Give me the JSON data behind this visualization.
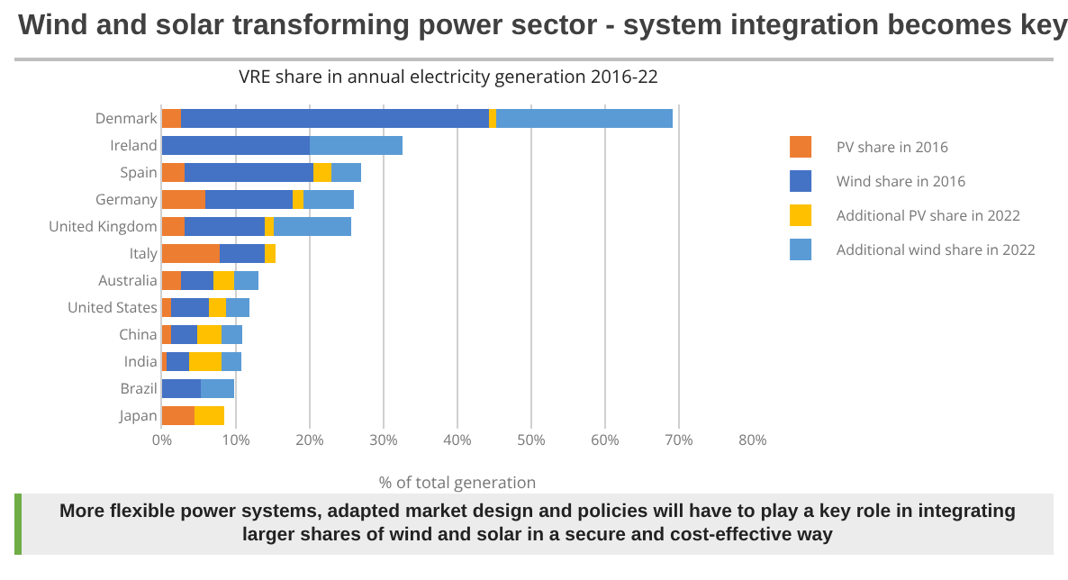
{
  "chart_data": {
    "type": "bar",
    "orientation": "horizontal",
    "stacked": true,
    "title": "Wind and solar transforming power sector - system integration becomes key",
    "subtitle": "VRE share in annual electricity generation 2016-22",
    "xlabel": "% of total generation",
    "categories": [
      "Denmark",
      "Ireland",
      "Spain",
      "Germany",
      "United Kingdom",
      "Italy",
      "Australia",
      "United States",
      "China",
      "India",
      "Brazil",
      "Japan"
    ],
    "series": [
      {
        "name": "PV share in 2016",
        "color": "#ed7d31",
        "values": [
          2.5,
          0,
          3.0,
          5.9,
          3.1,
          7.8,
          2.5,
          1.2,
          1.2,
          0.6,
          0,
          4.4
        ]
      },
      {
        "name": "Wind share in 2016",
        "color": "#4472c4",
        "values": [
          41.8,
          20,
          17.5,
          11.8,
          10.8,
          6.1,
          4.5,
          5.1,
          3.6,
          3.1,
          5.3,
          0
        ]
      },
      {
        "name": "Additional PV share in 2022",
        "color": "#ffc000",
        "values": [
          1.0,
          0,
          2.4,
          1.5,
          1.2,
          1.5,
          2.7,
          2.3,
          3.3,
          4.4,
          0,
          4.0
        ]
      },
      {
        "name": "Additional wind share in 2022",
        "color": "#5b9bd5",
        "values": [
          23.8,
          12.6,
          4.1,
          6.8,
          10.5,
          0,
          3.3,
          3.2,
          2.7,
          2.6,
          4.4,
          0
        ]
      }
    ],
    "xlim": [
      0,
      80
    ],
    "xticks": [
      {
        "value": 0,
        "label": "0%"
      },
      {
        "value": 10,
        "label": "10%"
      },
      {
        "value": 20,
        "label": "20%"
      },
      {
        "value": 30,
        "label": "30%"
      },
      {
        "value": 40,
        "label": "40%"
      },
      {
        "value": 50,
        "label": "50%"
      },
      {
        "value": 60,
        "label": "60%"
      },
      {
        "value": 70,
        "label": "70%"
      },
      {
        "value": 80,
        "label": "80%"
      }
    ],
    "grid": "x",
    "legend": "right",
    "annotations": [
      "More flexible power systems, adapted market design and policies will have to play a key role in integrating larger shares of wind and solar in a secure and cost-effective way"
    ]
  }
}
